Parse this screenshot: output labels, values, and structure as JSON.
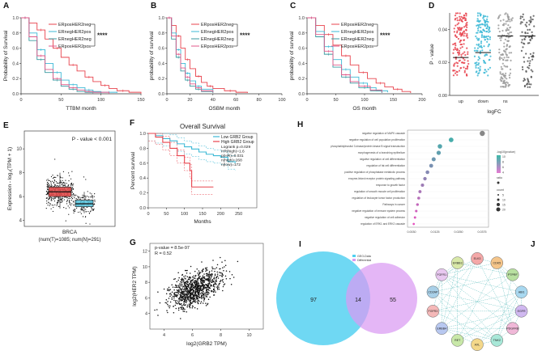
{
  "figure": {
    "panels": [
      "A",
      "B",
      "C",
      "D",
      "E",
      "F",
      "G",
      "H",
      "I",
      "J"
    ]
  },
  "colors": {
    "red": "#e8434d",
    "cyan": "#3cb9d6",
    "teal": "#3a9aa0",
    "pink": "#e05a8a",
    "gray": "#9b9b9b",
    "venn_left": "#4fd0f0",
    "venn_right": "#d99af2",
    "boxplot_tumor": "#e24b4b",
    "boxplot_normal": "#5bc7e0"
  },
  "chart_data": [
    {
      "id": "A",
      "type": "line",
      "ylabel": "Probability of Survival",
      "xlabel": "TTBM month",
      "xlim": [
        0,
        150
      ],
      "ylim": [
        0,
        1.0
      ],
      "xticks": [
        "0",
        "50",
        "100",
        "150"
      ],
      "yticks": [
        "0.0",
        "0.2",
        "0.4",
        "0.6",
        "0.8",
        "1.0"
      ],
      "significance": "****",
      "series": [
        {
          "name": "ERposHER2neg",
          "color": "#e8434d",
          "x": [
            0,
            10,
            20,
            30,
            40,
            50,
            60,
            70,
            80,
            90,
            100,
            110,
            120,
            135,
            150
          ],
          "y": [
            1.0,
            0.93,
            0.84,
            0.72,
            0.6,
            0.48,
            0.38,
            0.3,
            0.22,
            0.16,
            0.11,
            0.07,
            0.04,
            0.02,
            0.0
          ]
        },
        {
          "name": "ERnegHER2pos",
          "color": "#3cb9d6",
          "x": [
            0,
            10,
            20,
            30,
            40,
            50,
            60,
            70,
            80,
            90,
            100,
            120
          ],
          "y": [
            1.0,
            0.8,
            0.58,
            0.4,
            0.28,
            0.18,
            0.12,
            0.08,
            0.05,
            0.03,
            0.02,
            0.01
          ]
        },
        {
          "name": "ERnegHER2neg",
          "color": "#3a9aa0",
          "x": [
            0,
            10,
            20,
            30,
            40,
            50,
            60,
            70,
            80,
            100
          ],
          "y": [
            1.0,
            0.7,
            0.45,
            0.28,
            0.18,
            0.1,
            0.06,
            0.03,
            0.02,
            0.0
          ]
        },
        {
          "name": "ERposHER2pos",
          "color": "#e05a8a",
          "x": [
            0,
            10,
            20,
            30,
            40,
            50,
            60,
            70,
            80,
            90,
            110
          ],
          "y": [
            1.0,
            0.75,
            0.5,
            0.32,
            0.2,
            0.12,
            0.08,
            0.05,
            0.03,
            0.02,
            0.0
          ]
        }
      ]
    },
    {
      "id": "B",
      "type": "line",
      "ylabel": "probability of survival",
      "xlabel": "OSBM month",
      "xlim": [
        0,
        100
      ],
      "ylim": [
        0,
        1.0
      ],
      "xticks": [
        "0",
        "20",
        "40",
        "60",
        "80",
        "100"
      ],
      "yticks": [
        "0.0",
        "0.2",
        "0.4",
        "0.6",
        "0.8",
        "1.0"
      ],
      "significance": "****",
      "series": [
        {
          "name": "ERposHER2neg",
          "color": "#e8434d",
          "x": [
            0,
            4,
            8,
            12,
            16,
            20,
            25,
            30,
            35,
            40,
            50,
            60,
            70
          ],
          "y": [
            1.0,
            0.9,
            0.76,
            0.6,
            0.45,
            0.33,
            0.23,
            0.15,
            0.1,
            0.07,
            0.04,
            0.02,
            0.01
          ]
        },
        {
          "name": "ERnegHER2pos",
          "color": "#3cb9d6",
          "x": [
            0,
            4,
            8,
            12,
            16,
            20,
            25,
            30,
            40
          ],
          "y": [
            1.0,
            0.8,
            0.58,
            0.4,
            0.27,
            0.17,
            0.1,
            0.06,
            0.02
          ]
        },
        {
          "name": "ERnegHER2neg",
          "color": "#3a9aa0",
          "x": [
            0,
            4,
            8,
            12,
            16,
            20,
            25,
            30,
            40
          ],
          "y": [
            1.0,
            0.72,
            0.48,
            0.3,
            0.18,
            0.1,
            0.06,
            0.03,
            0.01
          ]
        },
        {
          "name": "ERposHER2pos",
          "color": "#e05a8a",
          "x": [
            0,
            4,
            8,
            12,
            16,
            20,
            25,
            30,
            40
          ],
          "y": [
            1.0,
            0.76,
            0.52,
            0.34,
            0.22,
            0.13,
            0.08,
            0.04,
            0.02
          ]
        }
      ]
    },
    {
      "id": "C",
      "type": "line",
      "ylabel": "probability of survival",
      "xlabel": "OS month",
      "xlim": [
        0,
        200
      ],
      "ylim": [
        0,
        1.0
      ],
      "xticks": [
        "0",
        "50",
        "100",
        "150",
        "200"
      ],
      "yticks": [
        "0.0",
        "0.2",
        "0.4",
        "0.6",
        "0.8",
        "1.0"
      ],
      "significance": "****",
      "series": [
        {
          "name": "ERposHER2neg",
          "color": "#e8434d",
          "x": [
            0,
            15,
            30,
            45,
            60,
            75,
            90,
            105,
            120,
            135,
            150,
            165,
            180
          ],
          "y": [
            1.0,
            0.9,
            0.78,
            0.64,
            0.5,
            0.38,
            0.28,
            0.2,
            0.14,
            0.09,
            0.06,
            0.03,
            0.01
          ]
        },
        {
          "name": "ERnegHER2pos",
          "color": "#3cb9d6",
          "x": [
            0,
            15,
            30,
            45,
            60,
            75,
            90,
            105,
            120,
            140
          ],
          "y": [
            1.0,
            0.82,
            0.62,
            0.45,
            0.32,
            0.22,
            0.14,
            0.08,
            0.04,
            0.02
          ]
        },
        {
          "name": "ERnegHER2neg",
          "color": "#3a9aa0",
          "x": [
            0,
            15,
            30,
            45,
            60,
            75,
            90,
            110,
            130
          ],
          "y": [
            1.0,
            0.75,
            0.52,
            0.35,
            0.22,
            0.14,
            0.08,
            0.04,
            0.01
          ]
        },
        {
          "name": "ERposHER2pos",
          "color": "#e05a8a",
          "x": [
            0,
            15,
            30,
            45,
            60,
            75,
            90,
            110,
            130
          ],
          "y": [
            1.0,
            0.78,
            0.56,
            0.38,
            0.25,
            0.16,
            0.1,
            0.05,
            0.02
          ]
        }
      ]
    },
    {
      "id": "D",
      "type": "scatter",
      "ylabel": "P - value",
      "xlabel": "logFC",
      "ylim": [
        0,
        0.05
      ],
      "categories": [
        "up",
        "down",
        "ns",
        "NA"
      ],
      "yticks": [
        "0.00",
        "0.02",
        "0.04"
      ],
      "category_colors": [
        "#e8434d",
        "#3cb9d6",
        "#9b9b9b",
        "#555555"
      ],
      "medians": [
        0.023,
        0.026,
        0.036,
        0.036
      ]
    },
    {
      "id": "E",
      "type": "box",
      "ylabel": "Expression - log₂(TPM + 1)",
      "annotation": "P - value < 0.001",
      "categories": [
        "T",
        "N"
      ],
      "ylim": [
        3.5,
        11.5
      ],
      "yticks": [
        "4",
        "6",
        "8",
        "10"
      ],
      "boxes": [
        {
          "name": "T",
          "median": 6.4,
          "q1": 6.0,
          "q3": 6.8,
          "whisker_low": 5.0,
          "whisker_high": 8.0,
          "n": 1085
        },
        {
          "name": "N",
          "median": 5.4,
          "q1": 5.15,
          "q3": 5.7,
          "whisker_low": 4.6,
          "whisker_high": 6.4,
          "n": 291
        }
      ],
      "xlabel_line1": "BRCA",
      "xlabel_line2": "(num(T)=1085; num(N)=291)"
    },
    {
      "id": "F",
      "type": "line",
      "title": "Overall Survival",
      "ylabel": "Percent survival",
      "xlabel": "Months",
      "xlim": [
        0,
        300
      ],
      "ylim": [
        0,
        1.0
      ],
      "xticks": [
        "0",
        "50",
        "100",
        "150",
        "200",
        "250"
      ],
      "yticks": [
        "0.0",
        "0.2",
        "0.4",
        "0.6",
        "0.8",
        "1.0"
      ],
      "legend": [
        "Low GRB2 Group",
        "High GRB2 Group"
      ],
      "stats": [
        "Logrank p=0.029",
        "HR(high)=1.6",
        "p(HR)=0.031",
        "n(high)=268",
        "n(low)=172"
      ],
      "series": [
        {
          "name": "Low GRB2 Group",
          "color": "#3cb9d6",
          "x": [
            0,
            20,
            40,
            60,
            80,
            100,
            120,
            140,
            160,
            180,
            200,
            220,
            240
          ],
          "y": [
            1.0,
            0.97,
            0.93,
            0.9,
            0.86,
            0.82,
            0.79,
            0.75,
            0.72,
            0.7,
            0.68,
            0.62,
            0.6
          ]
        },
        {
          "name": "High GRB2 Group",
          "color": "#e8434d",
          "x": [
            0,
            20,
            40,
            60,
            80,
            100,
            115,
            120,
            140,
            160,
            180
          ],
          "y": [
            1.0,
            0.95,
            0.88,
            0.8,
            0.7,
            0.6,
            0.5,
            0.28,
            0.28,
            0.28,
            0.28
          ]
        }
      ]
    },
    {
      "id": "G",
      "type": "scatter",
      "ylabel": "log2(HER2 TPM)",
      "xlabel": "log2(GRB2 TPM)",
      "stats_p": "p-value = 8.5e-97",
      "stats_r": "R = 0.52",
      "xlim": [
        3,
        11
      ],
      "ylim": [
        2,
        13
      ],
      "xticks": [
        "4",
        "6",
        "8",
        "10"
      ],
      "yticks": [
        "4",
        "6",
        "8",
        "10",
        "12"
      ]
    },
    {
      "id": "H",
      "type": "scatter",
      "terms": [
        "negative regulation of MAPK cascade",
        "negative regulation of cell population proliferation",
        "phosphatidylinositol 3-kinase/protein kinase B signal transduction",
        "morphogenesis of a branching epithelium",
        "negative regulation of cell differentiation",
        "regulation of fat cell differentiation",
        "positive regulation of phosphatase metabolic process",
        "enzyme-linked receptor protein signaling pathway",
        "response to growth factor",
        "regulation of smooth muscle cell proliferation",
        "regulation of leukocyte tumor factor production",
        "Pathways in cancer",
        "negative regulation of immune system process",
        "negative regulation of cell adhesion",
        "regulation of ERK1 and ERK2 cascade"
      ],
      "ratios": [
        0.075,
        0.05,
        0.041,
        0.04,
        0.036,
        0.034,
        0.031,
        0.029,
        0.027,
        0.025,
        0.024,
        0.023,
        0.022,
        0.021,
        0.02
      ],
      "xticks": [
        "0.0030",
        "0.0125",
        "0.0250",
        "0.0375"
      ],
      "legend_title_1": "-log10(pvalue)",
      "legend_title_2": "ratio",
      "legend_title_3": "count",
      "legend_color_ticks": [
        "10",
        "8",
        "6",
        "4"
      ],
      "legend_size_ticks": [
        "5",
        "10",
        "15",
        "20"
      ]
    },
    {
      "id": "I",
      "type": "venn",
      "sets": [
        "GEO-Data",
        "Differential"
      ],
      "left_only": 97,
      "overlap": 14,
      "right_only": 55,
      "left_only_label": "97",
      "overlap_label": "14",
      "right_only_label": "55"
    },
    {
      "id": "J",
      "type": "network",
      "nodes": [
        "ELK3",
        "CDK5",
        "PTPRF",
        "ABI1",
        "EGFR",
        "PDGFRB",
        "TNK2",
        "AXL",
        "RET",
        "ERBB4",
        "FGFR3",
        "CD2AP",
        "FGFR1",
        "ERBB3"
      ]
    }
  ]
}
